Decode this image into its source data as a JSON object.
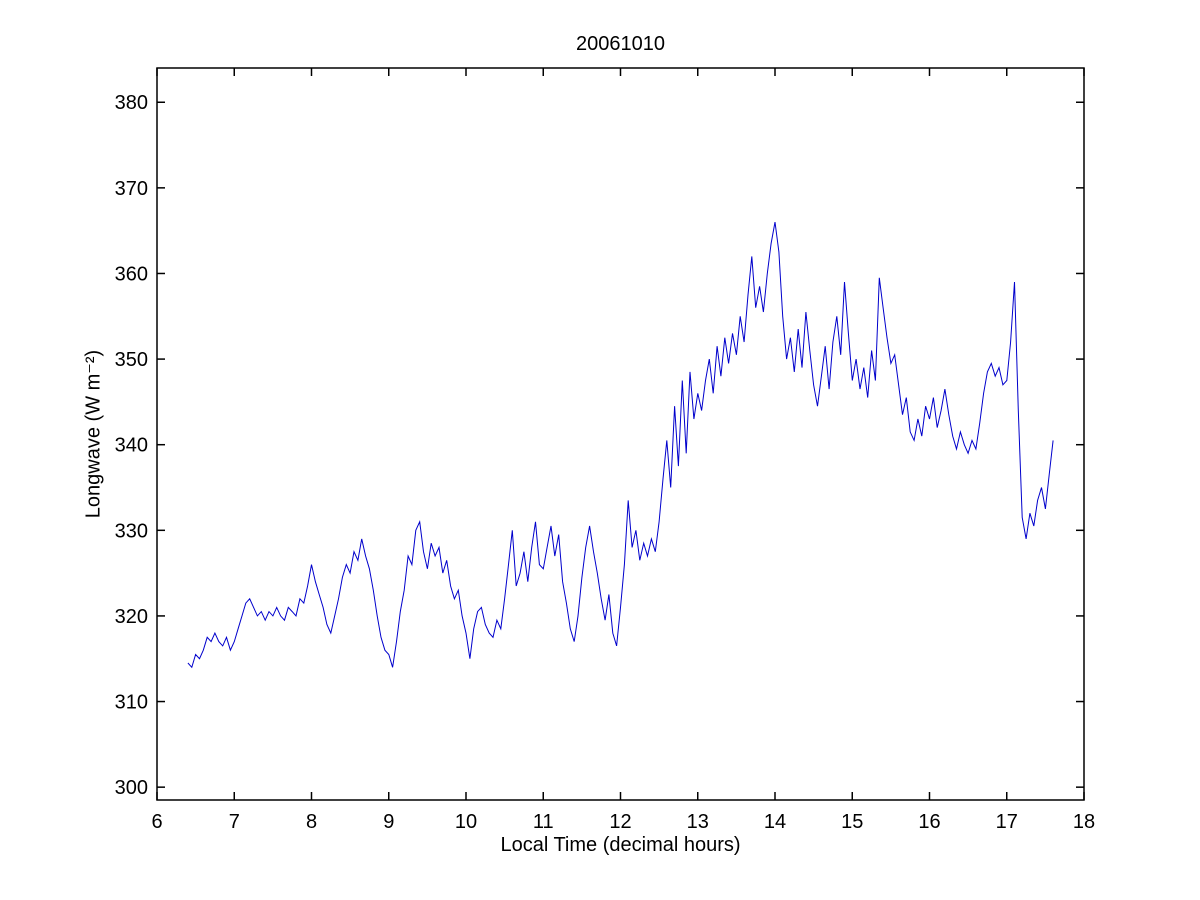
{
  "figure": {
    "background": "#ffffff"
  },
  "chart_data": {
    "type": "line",
    "title": "20061010",
    "xlabel": "Local Time (decimal hours)",
    "ylabel": "Longwave (W m⁻²)",
    "xlim": [
      6,
      18
    ],
    "ylim": [
      298.5,
      384
    ],
    "xticks": [
      6,
      7,
      8,
      9,
      10,
      11,
      12,
      13,
      14,
      15,
      16,
      17,
      18
    ],
    "yticks": [
      300,
      310,
      320,
      330,
      340,
      350,
      360,
      370,
      380
    ],
    "grid": false,
    "line_color": "#0000CC",
    "axis_color": "#000000",
    "x": [
      6.4,
      6.45,
      6.5,
      6.55,
      6.6,
      6.65,
      6.7,
      6.75,
      6.8,
      6.85,
      6.9,
      6.95,
      7,
      7.05,
      7.1,
      7.15,
      7.2,
      7.25,
      7.3,
      7.35,
      7.4,
      7.45,
      7.5,
      7.55,
      7.6,
      7.65,
      7.7,
      7.75,
      7.8,
      7.85,
      7.9,
      7.95,
      8,
      8.05,
      8.1,
      8.15,
      8.2,
      8.25,
      8.3,
      8.35,
      8.4,
      8.45,
      8.5,
      8.55,
      8.6,
      8.65,
      8.7,
      8.75,
      8.8,
      8.85,
      8.9,
      8.95,
      9,
      9.05,
      9.1,
      9.15,
      9.2,
      9.25,
      9.3,
      9.35,
      9.4,
      9.45,
      9.5,
      9.55,
      9.6,
      9.65,
      9.7,
      9.75,
      9.8,
      9.85,
      9.9,
      9.95,
      10,
      10.05,
      10.1,
      10.15,
      10.2,
      10.25,
      10.3,
      10.35,
      10.4,
      10.45,
      10.5,
      10.55,
      10.6,
      10.65,
      10.7,
      10.75,
      10.8,
      10.85,
      10.9,
      10.95,
      11,
      11.05,
      11.1,
      11.15,
      11.2,
      11.25,
      11.3,
      11.35,
      11.4,
      11.45,
      11.5,
      11.55,
      11.6,
      11.65,
      11.7,
      11.75,
      11.8,
      11.85,
      11.9,
      11.95,
      12,
      12.05,
      12.1,
      12.15,
      12.2,
      12.25,
      12.3,
      12.35,
      12.4,
      12.45,
      12.5,
      12.55,
      12.6,
      12.65,
      12.7,
      12.75,
      12.8,
      12.85,
      12.9,
      12.95,
      13,
      13.05,
      13.1,
      13.15,
      13.2,
      13.25,
      13.3,
      13.35,
      13.4,
      13.45,
      13.5,
      13.55,
      13.6,
      13.65,
      13.7,
      13.75,
      13.8,
      13.85,
      13.9,
      13.95,
      14,
      14.05,
      14.1,
      14.15,
      14.2,
      14.25,
      14.3,
      14.35,
      14.4,
      14.45,
      14.5,
      14.55,
      14.6,
      14.65,
      14.7,
      14.75,
      14.8,
      14.85,
      14.9,
      14.95,
      15,
      15.05,
      15.1,
      15.15,
      15.2,
      15.25,
      15.3,
      15.35,
      15.4,
      15.45,
      15.5,
      15.55,
      15.6,
      15.65,
      15.7,
      15.75,
      15.8,
      15.85,
      15.9,
      15.95,
      16,
      16.05,
      16.1,
      16.15,
      16.2,
      16.25,
      16.3,
      16.35,
      16.4,
      16.45,
      16.5,
      16.55,
      16.6,
      16.65,
      16.7,
      16.75,
      16.8,
      16.85,
      16.9,
      16.95,
      17,
      17.05,
      17.1,
      17.15,
      17.2,
      17.25,
      17.3,
      17.35,
      17.4,
      17.45,
      17.5,
      17.55,
      17.6
    ],
    "y": [
      314.5,
      314.0,
      315.5,
      315.0,
      316.0,
      317.5,
      317.0,
      318.0,
      317.0,
      316.5,
      317.5,
      316.0,
      317.0,
      318.5,
      320.0,
      321.5,
      322.0,
      321.0,
      320.0,
      320.5,
      319.5,
      320.5,
      320.0,
      321.0,
      320.0,
      319.5,
      321.0,
      320.5,
      320.0,
      322.0,
      321.5,
      323.5,
      326.0,
      324.0,
      322.5,
      321.0,
      319.0,
      318.0,
      320.0,
      322.0,
      324.5,
      326.0,
      325.0,
      327.5,
      326.5,
      329.0,
      327.0,
      325.5,
      323.0,
      320.0,
      317.5,
      316.0,
      315.5,
      314.0,
      317.0,
      320.5,
      323.0,
      327.0,
      326.0,
      330.0,
      331.0,
      327.5,
      325.5,
      328.5,
      327.0,
      328.0,
      325.0,
      326.5,
      323.5,
      322.0,
      323.0,
      320.0,
      318.0,
      315.0,
      318.5,
      320.5,
      321.0,
      319.0,
      318.0,
      317.5,
      319.5,
      318.5,
      322.0,
      326.0,
      330.0,
      323.5,
      325.0,
      327.5,
      324.0,
      328.0,
      331.0,
      326.0,
      325.5,
      328.0,
      330.5,
      327.0,
      329.5,
      324.0,
      321.5,
      318.5,
      317.0,
      320.0,
      324.5,
      328.0,
      330.5,
      327.5,
      325.0,
      322.0,
      319.5,
      322.5,
      318.0,
      316.5,
      321.0,
      326.0,
      333.5,
      328.0,
      330.0,
      326.5,
      328.5,
      327.0,
      329.0,
      327.5,
      331.0,
      336.0,
      340.5,
      335.0,
      344.5,
      337.5,
      347.5,
      339.0,
      348.5,
      343.0,
      346.0,
      344.0,
      347.5,
      350.0,
      346.0,
      351.5,
      348.0,
      352.5,
      349.5,
      353.0,
      350.5,
      355.0,
      352.0,
      357.5,
      362.0,
      356.0,
      358.5,
      355.5,
      360.0,
      363.5,
      366.0,
      362.5,
      355.0,
      350.0,
      352.5,
      348.5,
      353.5,
      349.0,
      355.5,
      351.0,
      347.0,
      344.5,
      348.0,
      351.5,
      346.5,
      352.0,
      355.0,
      350.5,
      359.0,
      353.0,
      347.5,
      350.0,
      346.5,
      349.0,
      345.5,
      351.0,
      347.5,
      359.5,
      356.0,
      352.5,
      349.5,
      350.5,
      347.0,
      343.5,
      345.5,
      341.5,
      340.5,
      343.0,
      341.0,
      344.5,
      343.0,
      345.5,
      342.0,
      344.0,
      346.5,
      343.5,
      341.0,
      339.5,
      341.5,
      340.0,
      339.0,
      340.5,
      339.5,
      342.5,
      346.0,
      348.5,
      349.5,
      348.0,
      349.0,
      347.0,
      347.5,
      352.0,
      359.0,
      344.0,
      331.5,
      329.0,
      332.0,
      330.5,
      333.5,
      335.0,
      332.5,
      336.5,
      340.5
    ]
  }
}
